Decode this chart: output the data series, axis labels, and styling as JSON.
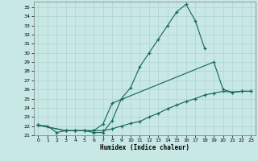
{
  "xlabel": "Humidex (Indice chaleur)",
  "bg_color": "#c8e8e5",
  "grid_color": "#aed4d0",
  "line_color": "#1a6b5a",
  "xlim": [
    -0.5,
    23.5
  ],
  "ylim": [
    21.0,
    35.6
  ],
  "yticks": [
    21,
    22,
    23,
    24,
    25,
    26,
    27,
    28,
    29,
    30,
    31,
    32,
    33,
    34,
    35
  ],
  "xticks": [
    0,
    1,
    2,
    3,
    4,
    5,
    6,
    7,
    8,
    9,
    10,
    11,
    12,
    13,
    14,
    15,
    16,
    17,
    18,
    19,
    20,
    21,
    22,
    23
  ],
  "line1_x": [
    0,
    1,
    2,
    3,
    4,
    5,
    6,
    7,
    8,
    9,
    10,
    11,
    12,
    13,
    14,
    15,
    16,
    17,
    18
  ],
  "line1_y": [
    22.1,
    22.0,
    21.3,
    21.5,
    21.5,
    21.5,
    21.3,
    21.3,
    22.6,
    25.0,
    26.2,
    28.5,
    30.0,
    31.5,
    33.0,
    34.5,
    35.3,
    33.5,
    30.5
  ],
  "line2_x": [
    0,
    3,
    4,
    5,
    6,
    7,
    8,
    19,
    20,
    21,
    22,
    23
  ],
  "line2_y": [
    22.1,
    21.5,
    21.5,
    21.5,
    21.5,
    22.2,
    24.5,
    29.0,
    26.0,
    25.7,
    25.8,
    25.8
  ],
  "line3_x": [
    0,
    3,
    4,
    5,
    6,
    7,
    8,
    9,
    10,
    11,
    12,
    13,
    14,
    15,
    16,
    17,
    18,
    19,
    20,
    21,
    22,
    23
  ],
  "line3_y": [
    22.1,
    21.5,
    21.5,
    21.5,
    21.5,
    21.5,
    21.7,
    22.0,
    22.3,
    22.5,
    23.0,
    23.4,
    23.9,
    24.3,
    24.7,
    25.0,
    25.4,
    25.6,
    25.8,
    25.7,
    25.8,
    25.8
  ]
}
